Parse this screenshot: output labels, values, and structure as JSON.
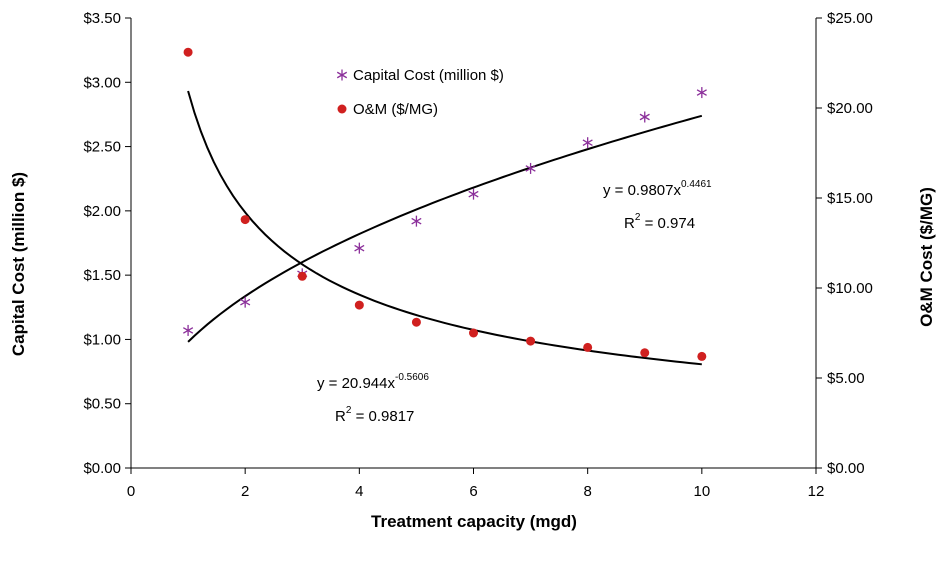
{
  "chart_data": {
    "type": "scatter",
    "xlabel": "Treatment capacity (mgd)",
    "ylabel": "Capital Cost (million $)",
    "y2label": "O&M Cost ($/MG)",
    "xlim": [
      0,
      12
    ],
    "ylim": [
      0,
      3.5
    ],
    "y2lim": [
      0,
      25
    ],
    "grid": false,
    "legend_position": "top-center",
    "x_ticks": [
      0,
      2,
      4,
      6,
      8,
      10,
      12
    ],
    "y_ticks": [
      0,
      0.5,
      1,
      1.5,
      2,
      2.5,
      3,
      3.5
    ],
    "y_tick_labels": [
      "$0.00",
      "$0.50",
      "$1.00",
      "$1.50",
      "$2.00",
      "$2.50",
      "$3.00",
      "$3.50"
    ],
    "y2_ticks": [
      0,
      5,
      10,
      15,
      20,
      25
    ],
    "y2_tick_labels": [
      "$0.00",
      "$5.00",
      "$10.00",
      "$15.00",
      "$20.00",
      "$25.00"
    ],
    "series": [
      {
        "name": "Capital Cost (million $)",
        "axis": "left",
        "marker": "asterisk",
        "color": "#8B2F9A",
        "x": [
          1,
          2,
          3,
          4,
          5,
          6,
          7,
          8,
          9,
          10
        ],
        "y": [
          1.07,
          1.29,
          1.51,
          1.71,
          1.92,
          2.13,
          2.33,
          2.53,
          2.73,
          2.92
        ],
        "trend": {
          "a": 0.9807,
          "b": 0.4461,
          "equation": "y = 0.9807x",
          "exponent": "0.4461",
          "r2_label": "R",
          "r2_sup": "2",
          "r2_value": " = 0.974"
        }
      },
      {
        "name": "O&M ($/MG)",
        "axis": "right",
        "marker": "circle",
        "color": "#D0201F",
        "x": [
          1,
          2,
          3,
          4,
          5,
          6,
          7,
          8,
          9,
          10
        ],
        "y": [
          23.1,
          13.8,
          10.65,
          9.05,
          8.1,
          7.5,
          7.05,
          6.7,
          6.4,
          6.2
        ],
        "trend": {
          "a": 20.944,
          "b": -0.5606,
          "equation": "y = 20.944x",
          "exponent": "-0.5606",
          "r2_label": "R",
          "r2_sup": "2",
          "r2_value": " = 0.9817"
        }
      }
    ]
  },
  "colors": {
    "axis": "#000000",
    "trendline": "#000000"
  }
}
